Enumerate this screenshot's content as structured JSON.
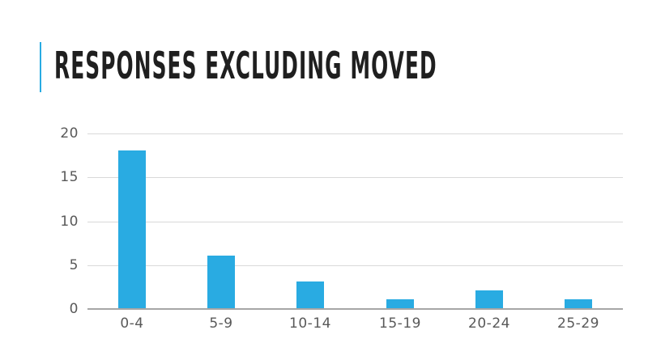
{
  "slide": {
    "title": "RESPONSES EXCLUDING MOVED",
    "accent_color": "#29ABE2",
    "title_color": "#1f1f1f",
    "background_color": "#ffffff"
  },
  "chart_data": {
    "type": "bar",
    "title": "",
    "xlabel": "",
    "ylabel": "",
    "categories": [
      "0-4",
      "5-9",
      "10-14",
      "15-19",
      "20-24",
      "25-29"
    ],
    "values": [
      18,
      6,
      3,
      1,
      2,
      1
    ],
    "ylim": [
      0,
      20
    ],
    "yticks": [
      0,
      5,
      10,
      15,
      20
    ],
    "grid": true,
    "legend": false,
    "bar_color": "#29ABE2",
    "gridline_color": "#D9D9D9",
    "axis_line_color": "#A6A6A6",
    "tick_label_color": "#595959"
  }
}
